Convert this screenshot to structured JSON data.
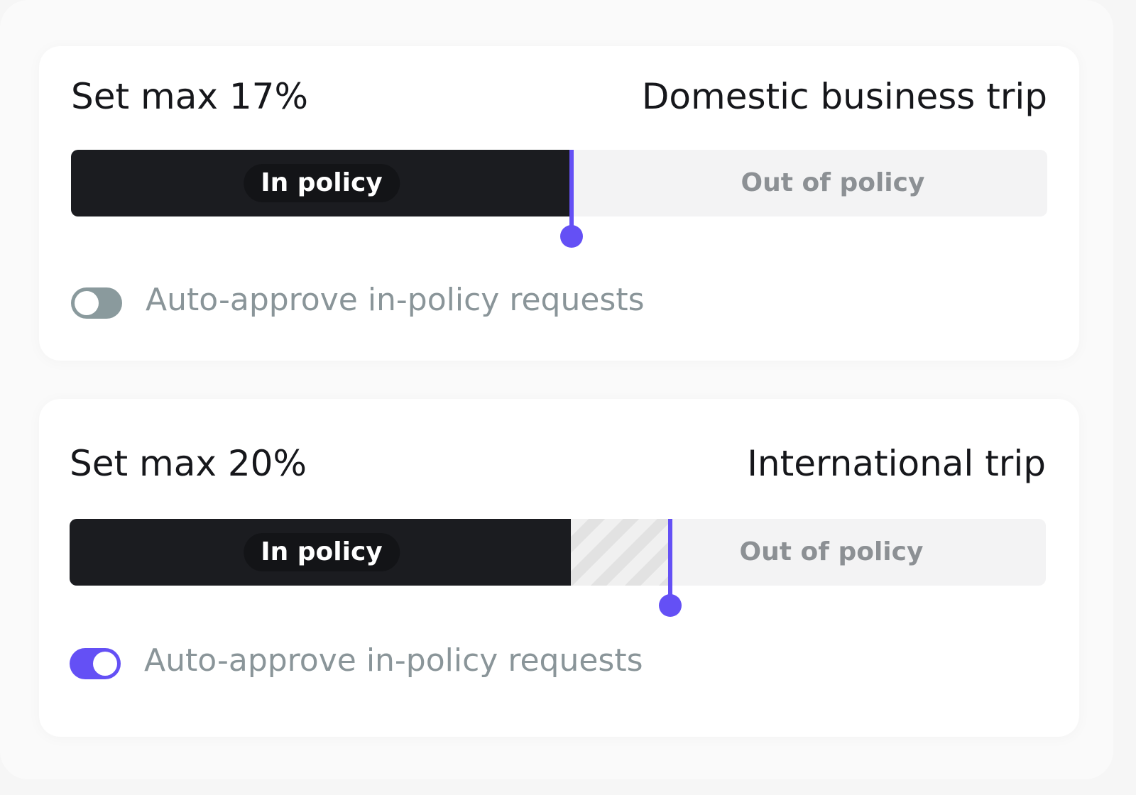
{
  "colors": {
    "accent": "#6450f5",
    "toggle_off": "#8a9a9d",
    "dark": "#1b1c20"
  },
  "policies": [
    {
      "set_max": "Set max 17%",
      "trip_type": "Domestic business trip",
      "in_label": "In policy",
      "out_label": "Out of policy",
      "handle_fraction": 0.513,
      "hatched": false,
      "auto_approve_label": "Auto-approve in-policy requests",
      "auto_approve_on": false
    },
    {
      "set_max": "Set max 20%",
      "trip_type": "International trip",
      "in_label": "In policy",
      "out_label": "Out of policy",
      "handle_fraction": 0.615,
      "hatched": true,
      "auto_approve_label": "Auto-approve in-policy requests",
      "auto_approve_on": true
    }
  ]
}
